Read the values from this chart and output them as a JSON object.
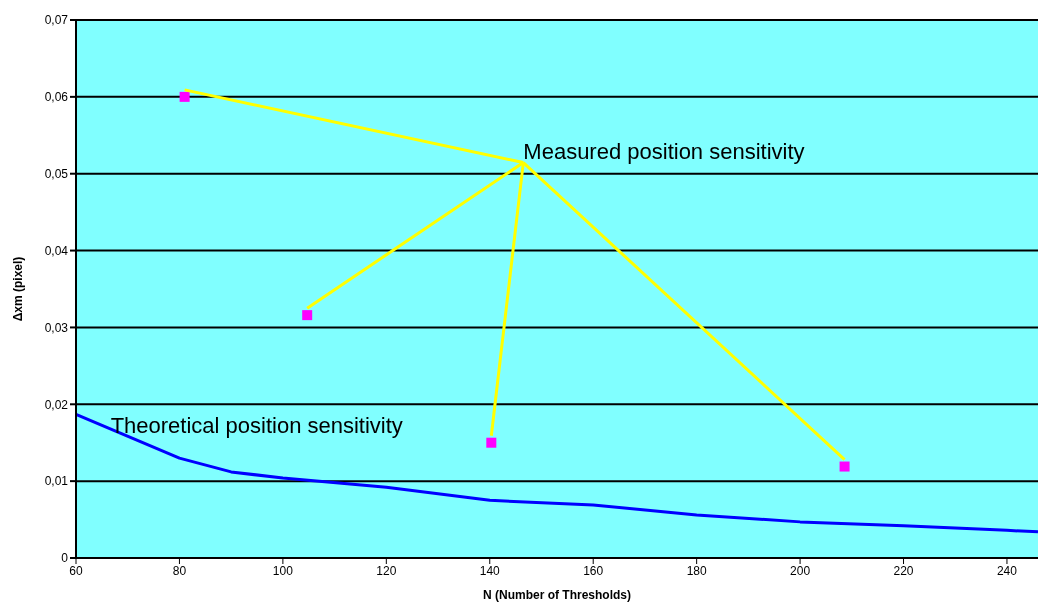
{
  "chart_data": {
    "type": "scatter",
    "xlabel": "N (Number of Thresholds)",
    "ylabel": "Δxm (pixel)",
    "xlim": [
      60,
      246
    ],
    "xticks": [
      60,
      80,
      100,
      120,
      140,
      160,
      180,
      200,
      220,
      240
    ],
    "ylim": [
      0,
      0.07
    ],
    "yticks": [
      {
        "value": 0,
        "label": "0"
      },
      {
        "value": 0.01,
        "label": "0,01"
      },
      {
        "value": 0.02,
        "label": "0,02"
      },
      {
        "value": 0.03,
        "label": "0,03"
      },
      {
        "value": 0.04,
        "label": "0,04"
      },
      {
        "value": 0.05,
        "label": "0,05"
      },
      {
        "value": 0.06,
        "label": "0,06"
      },
      {
        "value": 0.07,
        "label": "0,07"
      }
    ],
    "grid": "y",
    "series": [
      {
        "name": "Measured position sensitivity",
        "marker": "square",
        "color": "#ff00ff",
        "x": [
          81,
          104.7,
          140.3,
          208.6
        ],
        "values": [
          0.06,
          0.0316,
          0.015,
          0.0119
        ]
      },
      {
        "name": "Theoretical position sensitivity",
        "type": "line",
        "marker": "none",
        "line_style": "solid",
        "color": "#0000ff",
        "x": [
          60,
          80,
          90,
          100,
          120,
          140,
          160,
          180,
          200,
          220,
          240,
          246
        ],
        "values": [
          0.0187,
          0.013,
          0.0112,
          0.0104,
          0.0092,
          0.0075,
          0.0069,
          0.0056,
          0.0047,
          0.0042,
          0.0036,
          0.0034
        ]
      }
    ]
  }
}
